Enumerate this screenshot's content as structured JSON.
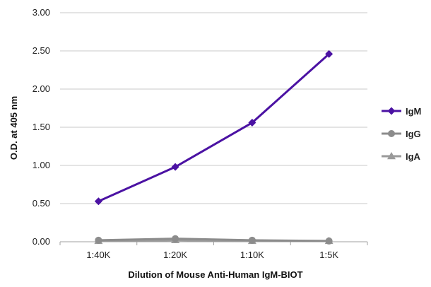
{
  "chart_data": {
    "type": "line",
    "title": "",
    "xlabel": "Dilution of Mouse Anti-Human IgM-BIOT",
    "ylabel": "O.D. at 405 nm",
    "categories": [
      "1:40K",
      "1:20K",
      "1:10K",
      "1:5K"
    ],
    "ylim": [
      0,
      3
    ],
    "yticks": [
      "0.00",
      "0.50",
      "1.00",
      "1.50",
      "2.00",
      "2.50",
      "3.00"
    ],
    "grid": true,
    "legend_position": "right",
    "series": [
      {
        "name": "IgM",
        "values": [
          0.53,
          0.98,
          1.56,
          2.46
        ],
        "color": "#4b12a3",
        "marker": "diamond"
      },
      {
        "name": "IgG",
        "values": [
          0.02,
          0.04,
          0.02,
          0.01
        ],
        "color": "#8c8c8c",
        "marker": "circle"
      },
      {
        "name": "IgA",
        "values": [
          0.01,
          0.02,
          0.01,
          0.01
        ],
        "color": "#9a9a9a",
        "marker": "triangle"
      }
    ]
  }
}
